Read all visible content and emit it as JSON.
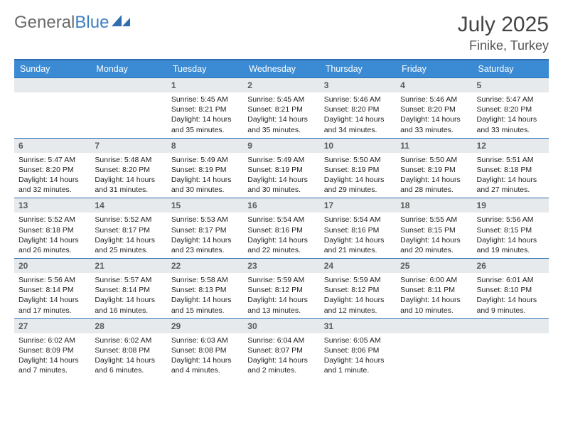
{
  "brand": {
    "part1": "General",
    "part2": "Blue"
  },
  "title": "July 2025",
  "location": "Finike, Turkey",
  "colors": {
    "header_bg": "#3b8bd4",
    "rule": "#2f6fb0",
    "daynum_bg": "#e7eaec"
  },
  "dow": [
    "Sunday",
    "Monday",
    "Tuesday",
    "Wednesday",
    "Thursday",
    "Friday",
    "Saturday"
  ],
  "weeks": [
    [
      null,
      null,
      {
        "n": "1",
        "sr": "5:45 AM",
        "ss": "8:21 PM",
        "dl": "14 hours and 35 minutes."
      },
      {
        "n": "2",
        "sr": "5:45 AM",
        "ss": "8:21 PM",
        "dl": "14 hours and 35 minutes."
      },
      {
        "n": "3",
        "sr": "5:46 AM",
        "ss": "8:20 PM",
        "dl": "14 hours and 34 minutes."
      },
      {
        "n": "4",
        "sr": "5:46 AM",
        "ss": "8:20 PM",
        "dl": "14 hours and 33 minutes."
      },
      {
        "n": "5",
        "sr": "5:47 AM",
        "ss": "8:20 PM",
        "dl": "14 hours and 33 minutes."
      }
    ],
    [
      {
        "n": "6",
        "sr": "5:47 AM",
        "ss": "8:20 PM",
        "dl": "14 hours and 32 minutes."
      },
      {
        "n": "7",
        "sr": "5:48 AM",
        "ss": "8:20 PM",
        "dl": "14 hours and 31 minutes."
      },
      {
        "n": "8",
        "sr": "5:49 AM",
        "ss": "8:19 PM",
        "dl": "14 hours and 30 minutes."
      },
      {
        "n": "9",
        "sr": "5:49 AM",
        "ss": "8:19 PM",
        "dl": "14 hours and 30 minutes."
      },
      {
        "n": "10",
        "sr": "5:50 AM",
        "ss": "8:19 PM",
        "dl": "14 hours and 29 minutes."
      },
      {
        "n": "11",
        "sr": "5:50 AM",
        "ss": "8:19 PM",
        "dl": "14 hours and 28 minutes."
      },
      {
        "n": "12",
        "sr": "5:51 AM",
        "ss": "8:18 PM",
        "dl": "14 hours and 27 minutes."
      }
    ],
    [
      {
        "n": "13",
        "sr": "5:52 AM",
        "ss": "8:18 PM",
        "dl": "14 hours and 26 minutes."
      },
      {
        "n": "14",
        "sr": "5:52 AM",
        "ss": "8:17 PM",
        "dl": "14 hours and 25 minutes."
      },
      {
        "n": "15",
        "sr": "5:53 AM",
        "ss": "8:17 PM",
        "dl": "14 hours and 23 minutes."
      },
      {
        "n": "16",
        "sr": "5:54 AM",
        "ss": "8:16 PM",
        "dl": "14 hours and 22 minutes."
      },
      {
        "n": "17",
        "sr": "5:54 AM",
        "ss": "8:16 PM",
        "dl": "14 hours and 21 minutes."
      },
      {
        "n": "18",
        "sr": "5:55 AM",
        "ss": "8:15 PM",
        "dl": "14 hours and 20 minutes."
      },
      {
        "n": "19",
        "sr": "5:56 AM",
        "ss": "8:15 PM",
        "dl": "14 hours and 19 minutes."
      }
    ],
    [
      {
        "n": "20",
        "sr": "5:56 AM",
        "ss": "8:14 PM",
        "dl": "14 hours and 17 minutes."
      },
      {
        "n": "21",
        "sr": "5:57 AM",
        "ss": "8:14 PM",
        "dl": "14 hours and 16 minutes."
      },
      {
        "n": "22",
        "sr": "5:58 AM",
        "ss": "8:13 PM",
        "dl": "14 hours and 15 minutes."
      },
      {
        "n": "23",
        "sr": "5:59 AM",
        "ss": "8:12 PM",
        "dl": "14 hours and 13 minutes."
      },
      {
        "n": "24",
        "sr": "5:59 AM",
        "ss": "8:12 PM",
        "dl": "14 hours and 12 minutes."
      },
      {
        "n": "25",
        "sr": "6:00 AM",
        "ss": "8:11 PM",
        "dl": "14 hours and 10 minutes."
      },
      {
        "n": "26",
        "sr": "6:01 AM",
        "ss": "8:10 PM",
        "dl": "14 hours and 9 minutes."
      }
    ],
    [
      {
        "n": "27",
        "sr": "6:02 AM",
        "ss": "8:09 PM",
        "dl": "14 hours and 7 minutes."
      },
      {
        "n": "28",
        "sr": "6:02 AM",
        "ss": "8:08 PM",
        "dl": "14 hours and 6 minutes."
      },
      {
        "n": "29",
        "sr": "6:03 AM",
        "ss": "8:08 PM",
        "dl": "14 hours and 4 minutes."
      },
      {
        "n": "30",
        "sr": "6:04 AM",
        "ss": "8:07 PM",
        "dl": "14 hours and 2 minutes."
      },
      {
        "n": "31",
        "sr": "6:05 AM",
        "ss": "8:06 PM",
        "dl": "14 hours and 1 minute."
      },
      null,
      null
    ]
  ],
  "labels": {
    "sunrise": "Sunrise: ",
    "sunset": "Sunset: ",
    "daylight": "Daylight: "
  }
}
